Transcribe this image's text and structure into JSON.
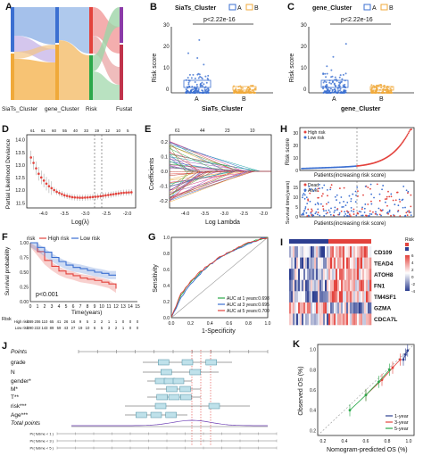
{
  "panels": {
    "A": {
      "letter": "A",
      "axis_labels": [
        "SiaTs_Cluster",
        "gene_Cluster",
        "Risk",
        "Fustat"
      ]
    },
    "B": {
      "letter": "B",
      "title": "SiaTs_Cluster",
      "legend": [
        "A",
        "B"
      ],
      "pvalue": "p<2.22e-16",
      "ylabel": "Risk score",
      "xlabel": "SiaTs_Cluster",
      "categories": [
        "A",
        "B"
      ],
      "yticks": [
        "0",
        "10",
        "20",
        "30"
      ]
    },
    "C": {
      "letter": "C",
      "title": "gene_Cluster",
      "legend": [
        "A",
        "B"
      ],
      "pvalue": "p<2.22e-16",
      "ylabel": "Risk score",
      "xlabel": "gene_Cluster",
      "categories": [
        "A",
        "B"
      ],
      "yticks": [
        "0",
        "10",
        "20",
        "30"
      ]
    },
    "D": {
      "letter": "D",
      "ylabel": "Partial Likelihood Deviance",
      "xlabel": "Log(λ)",
      "top_ticks": [
        "61",
        "61",
        "60",
        "55",
        "40",
        "33",
        "19",
        "12",
        "10",
        "5"
      ],
      "xticks": [
        "-4.0",
        "-3.5",
        "-3.0",
        "-2.5",
        "-2.0"
      ],
      "yticks": [
        "11.5",
        "12.0",
        "12.5",
        "13.0",
        "13.5",
        "14.0"
      ]
    },
    "E": {
      "letter": "E",
      "ylabel": "Coefficients",
      "xlabel": "Log Lambda",
      "top_ticks": [
        "61",
        "44",
        "23",
        "10"
      ],
      "xticks": [
        "-4.0",
        "-3.5",
        "-3.0",
        "-2.5",
        "-2.0"
      ],
      "yticks": [
        "-0.2",
        "-0.1",
        "0.0",
        "0.1",
        "0.2"
      ]
    },
    "H": {
      "letter": "H",
      "ylabel_top": "Risk score",
      "ylabel_bottom": "Survival time(years)",
      "xlabel": "Patients(increasing risk score)",
      "legend_top": [
        "High risk",
        "Low risk"
      ],
      "legend_bottom": [
        "Dead",
        "Alive"
      ],
      "xticks": [
        "0",
        "100",
        "200",
        "300",
        "400",
        "500"
      ],
      "yticks_top": [
        "0",
        "10",
        "20",
        "30"
      ],
      "yticks_bottom": [
        "0",
        "5",
        "10",
        "15"
      ]
    },
    "F": {
      "letter": "F",
      "legend_title": "risk",
      "legend": [
        "High risk",
        "Low risk"
      ],
      "pvalue": "p<0.001",
      "ylabel": "Survival probability",
      "xlabel": "Time(years)",
      "xticks": [
        "0",
        "1",
        "2",
        "3",
        "4",
        "5",
        "6",
        "7",
        "8",
        "9",
        "10",
        "11",
        "12",
        "13",
        "14",
        "15"
      ],
      "yticks": [
        "0.00",
        "0.25",
        "0.50",
        "0.75",
        "1.00"
      ],
      "risk_table_label": "Risk",
      "risk_rows": [
        {
          "name": "High risk",
          "values": [
            "289",
            "206",
            "110",
            "65",
            "41",
            "26",
            "16",
            "9",
            "5",
            "3",
            "2",
            "1",
            "1",
            "0",
            "0",
            "0"
          ]
        },
        {
          "name": "Low risk",
          "values": [
            "290",
            "222",
            "143",
            "89",
            "59",
            "43",
            "27",
            "19",
            "10",
            "6",
            "5",
            "3",
            "2",
            "1",
            "0",
            "0"
          ]
        }
      ]
    },
    "G": {
      "letter": "G",
      "ylabel": "Sensitivity",
      "xlabel": "1-Specificity",
      "legend": [
        "AUC at 1 years:0.698",
        "AUC at 3 years:0.695",
        "AUC at 5 years:0.700"
      ],
      "ticks": [
        "0.0",
        "0.2",
        "0.4",
        "0.6",
        "0.8",
        "1.0"
      ]
    },
    "I": {
      "letter": "I",
      "genes": [
        "CD109",
        "TEAD4",
        "ATOH8",
        "FN1",
        "TM4SF1",
        "GZMA",
        "CDCA7L"
      ],
      "legend_title": "Risk",
      "scale": [
        "6",
        "4",
        "2",
        "0",
        "-2",
        "-4"
      ]
    },
    "J": {
      "letter": "J",
      "rows": [
        "Points",
        "grade",
        "N",
        "gender*",
        "M*",
        "T**",
        "risk***",
        "Age***",
        "Total points"
      ],
      "prob_labels": [
        "Pr( futime < 1 )",
        "Pr( futime < 3 )",
        "Pr( futime < 5 )"
      ]
    },
    "K": {
      "letter": "K",
      "ylabel": "Observed OS (%)",
      "xlabel": "Nomogram-predicted OS (%)",
      "legend": [
        "1-year",
        "3-year",
        "5-year"
      ],
      "ticks": [
        "0.2",
        "0.4",
        "0.6",
        "0.8",
        "1.0"
      ]
    }
  },
  "chart_data": [
    {
      "panel": "A",
      "type": "sankey",
      "axes": [
        "SiaTs_Cluster",
        "gene_Cluster",
        "Risk",
        "Fustat"
      ],
      "nodes": {
        "SiaTs_Cluster": [
          "A",
          "B"
        ],
        "gene_Cluster": [
          "A",
          "B"
        ],
        "Risk": [
          "High",
          "Low"
        ],
        "Fustat": [
          "Dead",
          "Alive"
        ]
      }
    },
    {
      "panel": "B",
      "type": "box",
      "categories": [
        "A",
        "B"
      ],
      "values": [
        2.0,
        0.6
      ],
      "ylim": [
        0,
        32
      ]
    },
    {
      "panel": "C",
      "type": "box",
      "categories": [
        "A",
        "B"
      ],
      "values": [
        2.1,
        0.6
      ],
      "ylim": [
        0,
        32
      ]
    },
    {
      "panel": "D",
      "type": "scatter",
      "x": [
        -4.3,
        -4.1,
        -3.9,
        -3.7,
        -3.5,
        -3.3,
        -3.1,
        -2.9,
        -2.7,
        -2.5,
        -2.3,
        -2.1,
        -1.9
      ],
      "y": [
        13.3,
        12.6,
        12.2,
        11.95,
        11.8,
        11.72,
        11.7,
        11.72,
        11.75,
        11.8,
        11.85,
        11.9,
        11.92
      ],
      "ylim": [
        11.3,
        14.2
      ],
      "xlim": [
        -4.4,
        -1.8
      ]
    },
    {
      "panel": "E",
      "type": "line",
      "xlim": [
        -4.4,
        -1.8
      ],
      "ylim": [
        -0.25,
        0.25
      ]
    },
    {
      "panel": "F",
      "type": "line",
      "series": [
        {
          "name": "High risk",
          "x": [
            0,
            1,
            2,
            3,
            4,
            5,
            6,
            7,
            8,
            9,
            10,
            11,
            12
          ],
          "y": [
            1.0,
            0.85,
            0.7,
            0.6,
            0.52,
            0.47,
            0.44,
            0.4,
            0.38,
            0.36,
            0.33,
            0.3,
            0.22
          ]
        },
        {
          "name": "Low risk",
          "x": [
            0,
            1,
            2,
            3,
            4,
            5,
            6,
            7,
            8,
            9,
            10,
            11,
            12
          ],
          "y": [
            1.0,
            0.92,
            0.84,
            0.75,
            0.68,
            0.62,
            0.58,
            0.56,
            0.53,
            0.5,
            0.48,
            0.45,
            0.45
          ]
        }
      ],
      "ylim": [
        0,
        1
      ],
      "xlim": [
        0,
        15
      ]
    },
    {
      "panel": "G",
      "type": "line",
      "series": [
        {
          "name": "AUC at 1 years:0.698",
          "x": [
            0,
            0.1,
            0.2,
            0.3,
            0.4,
            0.5,
            0.6,
            0.7,
            0.8,
            0.9,
            1.0
          ],
          "y": [
            0,
            0.28,
            0.44,
            0.56,
            0.66,
            0.74,
            0.81,
            0.87,
            0.93,
            0.97,
            1.0
          ]
        },
        {
          "name": "AUC at 3 years:0.695",
          "x": [
            0,
            0.1,
            0.2,
            0.3,
            0.4,
            0.5,
            0.6,
            0.7,
            0.8,
            0.9,
            1.0
          ],
          "y": [
            0,
            0.25,
            0.42,
            0.55,
            0.66,
            0.74,
            0.81,
            0.87,
            0.92,
            0.97,
            1.0
          ]
        },
        {
          "name": "AUC at 5 years:0.700",
          "x": [
            0,
            0.1,
            0.2,
            0.3,
            0.4,
            0.5,
            0.6,
            0.7,
            0.8,
            0.9,
            1.0
          ],
          "y": [
            0,
            0.3,
            0.45,
            0.57,
            0.67,
            0.75,
            0.82,
            0.88,
            0.93,
            0.97,
            1.0
          ]
        }
      ],
      "xlim": [
        0,
        1
      ],
      "ylim": [
        0,
        1
      ]
    },
    {
      "panel": "K",
      "type": "scatter",
      "series": [
        {
          "name": "1-year",
          "x": [
            0.95,
            0.97,
            0.99
          ],
          "y": [
            0.9,
            0.95,
            0.99
          ]
        },
        {
          "name": "3-year",
          "x": [
            0.6,
            0.75,
            0.85,
            0.92
          ],
          "y": [
            0.55,
            0.7,
            0.82,
            0.9
          ]
        },
        {
          "name": "5-year",
          "x": [
            0.45,
            0.6,
            0.72,
            0.82
          ],
          "y": [
            0.4,
            0.55,
            0.68,
            0.8
          ]
        }
      ],
      "xlim": [
        0.15,
        1.05
      ],
      "ylim": [
        0.15,
        1.05
      ]
    }
  ],
  "colors": {
    "blue": "#3b6fd1",
    "orange": "#f0a93a",
    "red": "#e3423c",
    "green": "#2aa84a",
    "purple": "#6d3fb5",
    "navy": "#2c3e90"
  }
}
